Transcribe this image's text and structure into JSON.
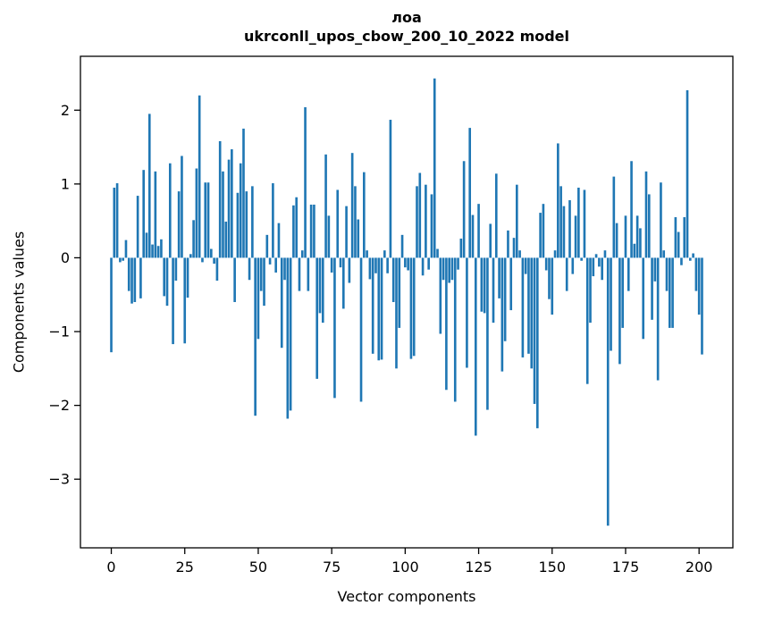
{
  "figure": {
    "title_line1": "лоа",
    "title_line2": "ukrconll_upos_cbow_200_10_2022 model"
  },
  "chart_data": {
    "type": "bar",
    "title": "лоа\nukrconll_upos_cbow_200_10_2022 model",
    "xlabel": "Vector components",
    "ylabel": "Components values",
    "bar_color": "#1f77b4",
    "axis_color": "#000000",
    "background_color": "#ffffff",
    "grid": false,
    "legend": false,
    "xlim": [
      -10.5,
      211.5
    ],
    "ylim": [
      -3.93,
      2.73
    ],
    "x_ticks": [
      0,
      25,
      50,
      75,
      100,
      125,
      150,
      175,
      200
    ],
    "x_tick_labels": [
      "0",
      "25",
      "50",
      "75",
      "100",
      "125",
      "150",
      "175",
      "200"
    ],
    "y_ticks": [
      2,
      1,
      0,
      -1,
      -2,
      -3
    ],
    "y_tick_labels": [
      "2",
      "1",
      "0",
      "−1",
      "−2",
      "−3"
    ],
    "values": [
      -1.28,
      0.95,
      1.01,
      -0.06,
      -0.04,
      0.24,
      -0.45,
      -0.62,
      -0.6,
      0.84,
      -0.55,
      1.19,
      0.34,
      1.95,
      0.18,
      1.17,
      0.16,
      0.25,
      -0.52,
      -0.65,
      1.28,
      -1.17,
      -0.31,
      0.9,
      1.38,
      -1.16,
      -0.54,
      0.05,
      0.51,
      1.21,
      2.2,
      -0.06,
      1.02,
      1.02,
      0.12,
      -0.08,
      -0.31,
      1.58,
      1.17,
      0.49,
      1.33,
      1.47,
      -0.6,
      0.88,
      1.28,
      1.75,
      0.9,
      -0.3,
      0.97,
      -2.14,
      -1.1,
      -0.45,
      -0.65,
      0.31,
      -0.09,
      1.01,
      -0.2,
      0.47,
      -1.22,
      -0.3,
      -2.18,
      -2.07,
      0.71,
      0.82,
      -0.45,
      0.1,
      2.04,
      -0.45,
      0.72,
      0.72,
      -1.64,
      -0.75,
      -0.88,
      1.4,
      0.57,
      -0.2,
      -1.9,
      0.92,
      -0.13,
      -0.69,
      0.7,
      -0.34,
      1.42,
      0.97,
      0.52,
      -1.95,
      1.16,
      0.1,
      -0.29,
      -1.3,
      -0.21,
      -1.39,
      -1.38,
      0.1,
      -0.21,
      1.87,
      -0.6,
      -1.5,
      -0.95,
      0.31,
      -0.13,
      -0.17,
      -1.37,
      -1.33,
      0.97,
      1.15,
      -0.24,
      0.99,
      -0.16,
      0.86,
      2.43,
      0.12,
      -1.03,
      -0.3,
      -1.79,
      -0.34,
      -0.3,
      -1.95,
      -0.16,
      0.26,
      1.31,
      -1.49,
      1.76,
      0.58,
      -2.41,
      0.73,
      -0.73,
      -0.75,
      -2.06,
      0.46,
      -0.88,
      1.14,
      -0.55,
      -1.54,
      -1.13,
      0.37,
      -0.71,
      0.27,
      0.99,
      0.1,
      -1.35,
      -0.22,
      -1.3,
      -1.5,
      -1.98,
      -2.31,
      0.61,
      0.73,
      -0.17,
      -0.56,
      -0.77,
      0.1,
      1.55,
      0.97,
      0.7,
      -0.45,
      0.78,
      -0.22,
      0.57,
      0.95,
      -0.04,
      0.92,
      -1.71,
      -0.88,
      -0.25,
      0.05,
      -0.12,
      -0.3,
      0.1,
      -3.63,
      -1.26,
      1.1,
      0.47,
      -1.44,
      -0.95,
      0.57,
      -0.45,
      1.31,
      0.19,
      0.57,
      0.4,
      -1.1,
      1.17,
      0.86,
      -0.84,
      -0.32,
      -1.66,
      1.02,
      0.1,
      -0.45,
      -0.95,
      -0.95,
      0.55,
      0.35,
      -0.1,
      0.55,
      2.27,
      -0.04,
      0.06,
      -0.45,
      -0.77,
      -1.31
    ]
  }
}
